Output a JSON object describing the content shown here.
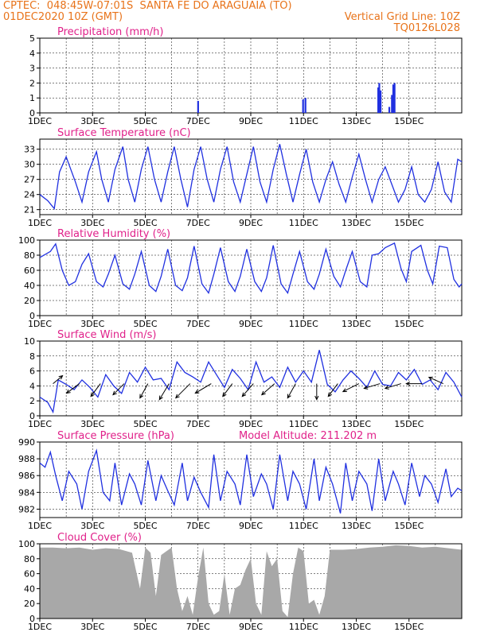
{
  "header": {
    "line1": "CPTEC:  048:45W-07:01S  SANTA FE DO ARAGUAIA (TO)",
    "line2": "01DEC2020 10Z (GMT)",
    "grid_note": "Vertical Grid Line: 10Z",
    "code": "TQ0126L028"
  },
  "colors": {
    "header_text": "#e8731a",
    "panel_title": "#e0218a",
    "line": "#2030e0",
    "cloud_fill": "#a8a8a8",
    "grid": "#000000"
  },
  "chart_data": [
    {
      "id": "precip",
      "type": "bar",
      "title": "Precipitation (mm/h)",
      "ylim": [
        0,
        5
      ],
      "yticks": [
        0,
        1,
        2,
        3,
        4,
        5
      ],
      "grid": true,
      "x_unit": "days since 01DEC 00Z",
      "xticks": [
        "1DEC",
        "3DEC",
        "5DEC",
        "7DEC",
        "9DEC",
        "11DEC",
        "13DEC",
        "15DEC"
      ],
      "x": [
        6.0,
        9.98,
        10.07,
        12.83,
        12.87,
        12.92,
        13.25,
        13.35,
        13.4,
        13.45
      ],
      "values": [
        0.8,
        0.9,
        1.0,
        1.7,
        2.0,
        1.5,
        0.4,
        1.2,
        1.9,
        2.0
      ]
    },
    {
      "id": "temp",
      "type": "line",
      "title": "Surface Temperature (nC)",
      "ylim": [
        20,
        35
      ],
      "yticks": [
        21,
        24,
        27,
        30,
        33
      ],
      "grid": true,
      "xticks": [
        "1DEC",
        "3DEC",
        "5DEC",
        "7DEC",
        "9DEC",
        "11DEC",
        "13DEC",
        "15DEC"
      ],
      "x": [
        0,
        0.3,
        0.55,
        0.75,
        1.0,
        1.35,
        1.6,
        1.85,
        2.15,
        2.35,
        2.6,
        2.85,
        3.15,
        3.35,
        3.6,
        3.85,
        4.1,
        4.35,
        4.6,
        4.85,
        5.1,
        5.35,
        5.6,
        5.85,
        6.1,
        6.35,
        6.6,
        6.85,
        7.1,
        7.35,
        7.6,
        7.85,
        8.1,
        8.35,
        8.6,
        8.85,
        9.1,
        9.35,
        9.6,
        9.85,
        10.1,
        10.35,
        10.6,
        10.85,
        11.1,
        11.35,
        11.6,
        11.85,
        12.1,
        12.35,
        12.6,
        12.85,
        13.1,
        13.35,
        13.6,
        13.85,
        14.1,
        14.35,
        14.6,
        14.85,
        15.1,
        15.35,
        15.6,
        15.85,
        16.0
      ],
      "values": [
        24,
        22.8,
        21.2,
        28.5,
        31.5,
        26.5,
        22.5,
        28.5,
        32.5,
        27,
        22.5,
        29,
        33.5,
        27,
        22.5,
        29,
        33.5,
        27,
        22.5,
        28.5,
        33.5,
        27,
        21.5,
        29,
        33.5,
        27,
        22.5,
        29,
        33.5,
        26.5,
        22.5,
        28,
        33.5,
        26.5,
        22.5,
        29,
        34,
        28,
        22.5,
        28,
        33,
        26.5,
        22.5,
        27,
        30.5,
        26,
        22.5,
        27.5,
        32,
        27,
        22.5,
        27,
        29.5,
        26,
        22.5,
        25,
        29.5,
        24,
        22.5,
        25,
        30.5,
        24.5,
        22.5,
        31,
        30.5
      ]
    },
    {
      "id": "rh",
      "type": "line",
      "title": "Relative Humidity (%)",
      "ylim": [
        0,
        100
      ],
      "yticks": [
        0,
        20,
        40,
        60,
        80,
        100
      ],
      "grid": true,
      "xticks": [
        "1DEC",
        "3DEC",
        "5DEC",
        "7DEC",
        "9DEC",
        "11DEC",
        "13DEC",
        "15DEC"
      ],
      "x": [
        0,
        0.4,
        0.6,
        0.85,
        1.1,
        1.35,
        1.6,
        1.85,
        2.15,
        2.4,
        2.6,
        2.85,
        3.15,
        3.4,
        3.6,
        3.85,
        4.15,
        4.4,
        4.6,
        4.85,
        5.15,
        5.4,
        5.6,
        5.85,
        6.15,
        6.4,
        6.6,
        6.85,
        7.15,
        7.4,
        7.6,
        7.85,
        8.15,
        8.4,
        8.6,
        8.85,
        9.15,
        9.4,
        9.6,
        9.85,
        10.15,
        10.4,
        10.6,
        10.85,
        11.15,
        11.4,
        11.6,
        11.85,
        12.15,
        12.4,
        12.6,
        12.85,
        13.1,
        13.45,
        13.7,
        13.9,
        14.1,
        14.45,
        14.7,
        14.9,
        15.15,
        15.45,
        15.7,
        15.9,
        16.0
      ],
      "values": [
        77,
        85,
        95,
        60,
        40,
        45,
        68,
        82,
        45,
        38,
        55,
        80,
        42,
        35,
        55,
        85,
        40,
        32,
        52,
        88,
        40,
        33,
        50,
        92,
        42,
        30,
        55,
        90,
        45,
        32,
        52,
        88,
        45,
        32,
        50,
        93,
        42,
        30,
        55,
        85,
        45,
        35,
        55,
        88,
        52,
        38,
        60,
        85,
        45,
        38,
        80,
        82,
        90,
        96,
        62,
        45,
        85,
        93,
        60,
        42,
        92,
        90,
        48,
        38,
        42
      ]
    },
    {
      "id": "wind",
      "type": "line",
      "title": "Surface Wind (m/s)",
      "ylim": [
        0,
        10
      ],
      "yticks": [
        0,
        2,
        4,
        6,
        8,
        10
      ],
      "grid": true,
      "xticks": [
        "1DEC",
        "3DEC",
        "5DEC",
        "7DEC",
        "9DEC",
        "11DEC",
        "13DEC",
        "15DEC"
      ],
      "x": [
        0,
        0.3,
        0.5,
        0.7,
        1.0,
        1.3,
        1.6,
        1.9,
        2.2,
        2.5,
        2.8,
        3.1,
        3.4,
        3.7,
        4.0,
        4.3,
        4.6,
        4.9,
        5.2,
        5.5,
        5.8,
        6.1,
        6.4,
        6.7,
        7.0,
        7.3,
        7.6,
        7.9,
        8.2,
        8.5,
        8.8,
        9.1,
        9.4,
        9.7,
        10.0,
        10.3,
        10.6,
        10.9,
        11.2,
        11.5,
        11.8,
        12.1,
        12.4,
        12.7,
        13.0,
        13.3,
        13.6,
        13.9,
        14.2,
        14.5,
        14.8,
        15.1,
        15.4,
        15.7,
        16.0
      ],
      "values": [
        2.5,
        1.8,
        0.5,
        4.8,
        4.2,
        3.5,
        4.8,
        3.8,
        2.5,
        5.5,
        4.0,
        3.0,
        5.8,
        4.5,
        6.5,
        4.8,
        5.0,
        3.5,
        7.2,
        5.8,
        5.2,
        4.5,
        7.2,
        5.5,
        3.8,
        6.2,
        5.0,
        3.5,
        7.2,
        4.5,
        5.2,
        3.8,
        6.5,
        4.5,
        6.0,
        4.5,
        8.8,
        4.2,
        3.2,
        4.8,
        6.0,
        5.0,
        3.8,
        6.0,
        4.2,
        4.0,
        5.8,
        4.8,
        6.2,
        4.2,
        4.8,
        3.5,
        5.8,
        4.5,
        2.5
      ],
      "vectors": {
        "x": [
          0.5,
          1.5,
          2.3,
          3.2,
          4.1,
          4.9,
          5.7,
          6.5,
          7.3,
          8.1,
          8.9,
          9.7,
          10.5,
          11.3,
          12.1,
          12.9,
          13.7,
          14.5,
          15.3
        ],
        "u": [
          0.6,
          -0.8,
          -0.6,
          -0.7,
          -0.5,
          -0.6,
          -0.9,
          -1.0,
          -0.6,
          -0.7,
          -0.8,
          -0.5,
          0.0,
          -0.6,
          -1.0,
          -1.0,
          -1.0,
          -1.0,
          -0.9
        ],
        "v": [
          0.5,
          -0.6,
          -0.8,
          -0.7,
          -0.9,
          -1.0,
          -0.9,
          -0.6,
          -0.8,
          -0.8,
          -0.7,
          -0.9,
          -1.0,
          -0.8,
          -0.5,
          -0.3,
          -0.3,
          0.0,
          0.4
        ]
      }
    },
    {
      "id": "pressure",
      "type": "line",
      "title": "Surface Pressure (hPa)",
      "note": "Model Altitude: 211.202 m",
      "ylim": [
        981,
        990
      ],
      "yticks": [
        982,
        984,
        986,
        988,
        990
      ],
      "grid": true,
      "xticks": [
        "1DEC",
        "3DEC",
        "5DEC",
        "7DEC",
        "9DEC",
        "11DEC",
        "13DEC",
        "15DEC"
      ],
      "x": [
        0,
        0.2,
        0.4,
        0.6,
        0.85,
        1.1,
        1.4,
        1.6,
        1.85,
        2.15,
        2.4,
        2.65,
        2.85,
        3.1,
        3.4,
        3.6,
        3.85,
        4.1,
        4.4,
        4.6,
        4.85,
        5.1,
        5.4,
        5.6,
        5.85,
        6.1,
        6.4,
        6.6,
        6.85,
        7.1,
        7.4,
        7.6,
        7.85,
        8.1,
        8.4,
        8.6,
        8.85,
        9.1,
        9.4,
        9.6,
        9.85,
        10.1,
        10.4,
        10.6,
        10.85,
        11.1,
        11.4,
        11.6,
        11.85,
        12.1,
        12.4,
        12.6,
        12.85,
        13.1,
        13.4,
        13.6,
        13.85,
        14.1,
        14.4,
        14.6,
        14.85,
        15.1,
        15.4,
        15.6,
        15.85,
        16.0
      ],
      "values": [
        987.5,
        987,
        988.8,
        986,
        983,
        986.5,
        985,
        982,
        986.5,
        989,
        984,
        983,
        987.5,
        982.5,
        986.2,
        985,
        982.5,
        987.8,
        983,
        986,
        984.2,
        982.5,
        987.5,
        983,
        985.8,
        984,
        982.2,
        988.5,
        983,
        986.5,
        985,
        982.5,
        988.5,
        983.5,
        986.2,
        985,
        982,
        988.5,
        983,
        986.5,
        985,
        982,
        988,
        983,
        987,
        985,
        981.5,
        987.5,
        983,
        986.5,
        985,
        981.8,
        988,
        983,
        986.5,
        985,
        982.5,
        987.5,
        983.5,
        986,
        985,
        982.8,
        986.8,
        983.5,
        984.5,
        984.2
      ]
    },
    {
      "id": "cloud",
      "type": "area",
      "title": "Cloud Cover (%)",
      "ylim": [
        0,
        100
      ],
      "yticks": [
        0,
        20,
        40,
        60,
        80,
        100
      ],
      "grid": true,
      "xticks": [
        "1DEC",
        "3DEC",
        "5DEC",
        "7DEC",
        "9DEC",
        "11DEC",
        "13DEC",
        "15DEC"
      ],
      "x": [
        0,
        0.5,
        1.0,
        1.5,
        2.0,
        2.5,
        3.0,
        3.5,
        3.8,
        4.0,
        4.2,
        4.4,
        4.6,
        4.8,
        5.0,
        5.2,
        5.4,
        5.6,
        5.8,
        6.0,
        6.2,
        6.4,
        6.6,
        6.8,
        7.0,
        7.2,
        7.4,
        7.6,
        7.8,
        8.0,
        8.2,
        8.4,
        8.6,
        8.8,
        9.0,
        9.2,
        9.4,
        9.6,
        9.8,
        10.0,
        10.2,
        10.4,
        10.6,
        10.8,
        11.0,
        11.5,
        12.0,
        12.5,
        13.0,
        13.5,
        14.0,
        14.5,
        15.0,
        15.5,
        16.0
      ],
      "values": [
        95,
        95,
        94,
        95,
        92,
        94,
        93,
        88,
        40,
        95,
        88,
        30,
        85,
        90,
        95,
        40,
        10,
        30,
        5,
        55,
        95,
        20,
        5,
        10,
        60,
        5,
        40,
        45,
        65,
        80,
        20,
        5,
        90,
        70,
        80,
        10,
        2,
        60,
        95,
        90,
        20,
        25,
        5,
        30,
        92,
        92,
        93,
        95,
        96,
        98,
        97,
        95,
        96,
        94,
        92
      ]
    }
  ]
}
